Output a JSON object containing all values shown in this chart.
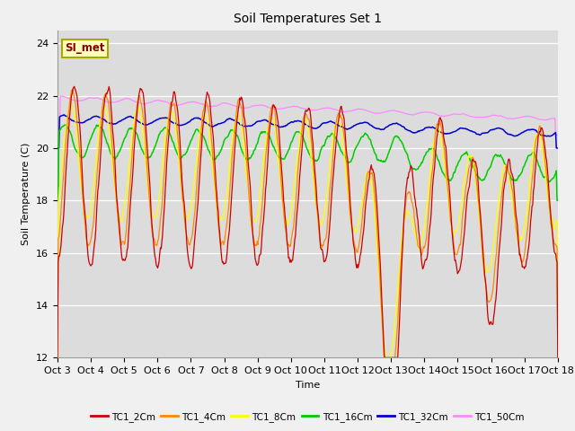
{
  "title": "Soil Temperatures Set 1",
  "xlabel": "Time",
  "ylabel": "Soil Temperature (C)",
  "ylim": [
    12,
    24.5
  ],
  "yticks": [
    12,
    14,
    16,
    18,
    20,
    22,
    24
  ],
  "x_labels": [
    "Oct 3",
    "Oct 4",
    "Oct 5",
    "Oct 6",
    "Oct 7",
    "Oct 8",
    "Oct 9",
    "Oct 10",
    "Oct 11",
    "Oct 12",
    "Oct 13",
    "Oct 14",
    "Oct 15",
    "Oct 16",
    "Oct 17",
    "Oct 18"
  ],
  "colors": {
    "TC1_2Cm": "#cc0000",
    "TC1_4Cm": "#ff8800",
    "TC1_8Cm": "#ffff00",
    "TC1_16Cm": "#00cc00",
    "TC1_32Cm": "#0000cc",
    "TC1_50Cm": "#ff88ff"
  },
  "bg_color": "#dcdcdc",
  "fig_color": "#f0f0f0",
  "annotation_text": "SI_met",
  "annotation_color": "#880000",
  "annotation_bg": "#ffffbb",
  "annotation_border": "#aaa800",
  "title_fontsize": 10,
  "axis_label_fontsize": 8,
  "tick_fontsize": 8
}
